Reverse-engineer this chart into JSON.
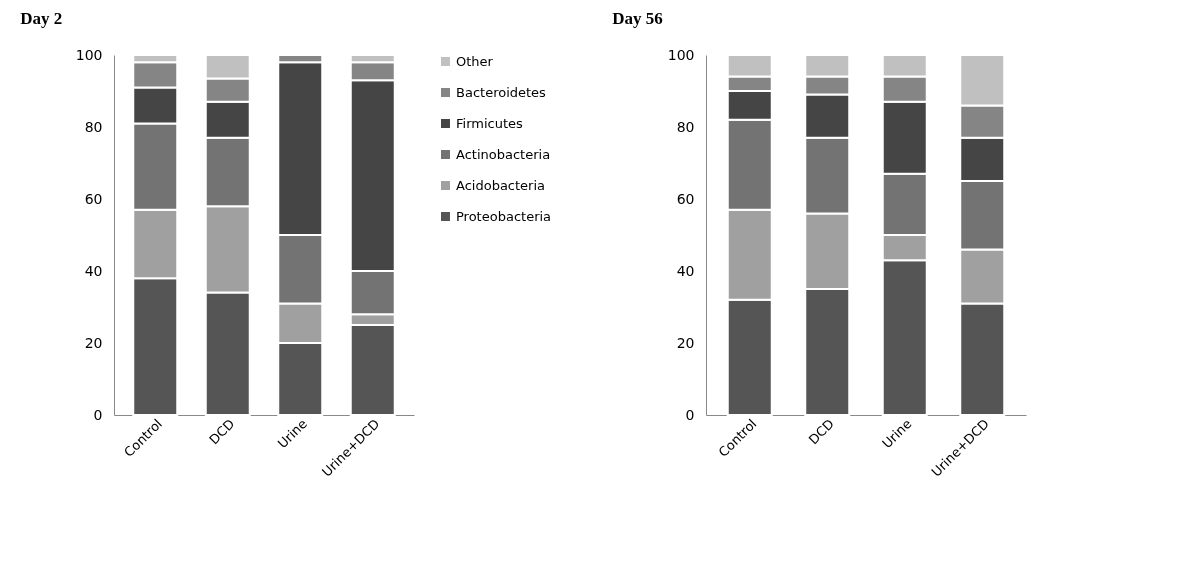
{
  "chart_data": [
    {
      "type": "bar",
      "title": "Day 2",
      "stacked": true,
      "categories": [
        "Control",
        "DCD",
        "Urine",
        "Urine+DCD"
      ],
      "ylim": [
        0,
        100
      ],
      "yticks": [
        0,
        20,
        40,
        60,
        80,
        100
      ],
      "grid": false,
      "legend": "right",
      "series": [
        {
          "name": "Proteobacteria",
          "color": "#555555",
          "values": [
            38,
            34,
            20,
            25
          ]
        },
        {
          "name": "Acidobacteria",
          "color": "#a0a0a0",
          "values": [
            19,
            24,
            11,
            3
          ]
        },
        {
          "name": "Actinobacteria",
          "color": "#737373",
          "values": [
            24,
            19,
            19,
            12
          ]
        },
        {
          "name": "Firmicutes",
          "color": "#454545",
          "values": [
            10,
            10,
            48,
            53
          ]
        },
        {
          "name": "Bacteroidetes",
          "color": "#858585",
          "values": [
            7,
            6.5,
            2,
            5
          ]
        },
        {
          "name": "Other",
          "color": "#c0c0c0",
          "values": [
            2,
            6.5,
            null,
            2
          ]
        }
      ]
    },
    {
      "type": "bar",
      "title": "Day 56",
      "stacked": true,
      "categories": [
        "Control",
        "DCD",
        "Urine",
        "Urine+DCD"
      ],
      "ylim": [
        0,
        100
      ],
      "yticks": [
        0,
        20,
        40,
        60,
        80,
        100
      ],
      "grid": false,
      "legend": false,
      "series": [
        {
          "name": "Proteobacteria",
          "color": "#555555",
          "values": [
            32,
            35,
            43,
            31
          ]
        },
        {
          "name": "Acidobacteria",
          "color": "#a0a0a0",
          "values": [
            25,
            21,
            7,
            15
          ]
        },
        {
          "name": "Actinobacteria",
          "color": "#737373",
          "values": [
            25,
            21,
            17,
            19
          ]
        },
        {
          "name": "Firmicutes",
          "color": "#454545",
          "values": [
            8,
            12,
            20,
            12
          ]
        },
        {
          "name": "Bacteroidetes",
          "color": "#858585",
          "values": [
            4,
            5,
            7,
            9
          ]
        },
        {
          "name": "Other",
          "color": "#c0c0c0",
          "values": [
            6,
            6,
            6,
            14
          ]
        }
      ]
    }
  ]
}
